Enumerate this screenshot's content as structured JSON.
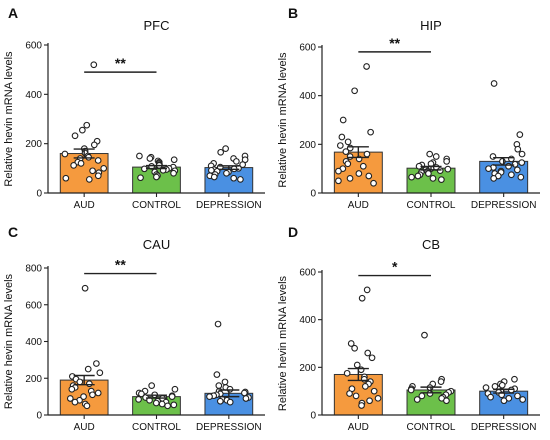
{
  "chart_data": [
    {
      "type": "bar",
      "panel": "A",
      "title": "PFC",
      "ylabel": "Relative hevin mRNA levels",
      "categories": [
        "AUD",
        "CONTROL",
        "DEPRESSION"
      ],
      "values": [
        160,
        105,
        103
      ],
      "sem": [
        18,
        6,
        7
      ],
      "ylim": [
        0,
        600
      ],
      "yticks": [
        0,
        200,
        400,
        600
      ],
      "colors": [
        "#f59a3e",
        "#6cc04a",
        "#4a90e2"
      ],
      "points": [
        [
          520,
          275,
          255,
          232,
          210,
          195,
          180,
          170,
          162,
          158,
          150,
          145,
          140,
          132,
          125,
          120,
          112,
          100,
          90,
          82,
          70,
          60,
          55
        ],
        [
          150,
          145,
          140,
          135,
          130,
          125,
          120,
          115,
          112,
          108,
          105,
          100,
          98,
          95,
          92,
          90,
          85,
          80,
          75,
          70,
          65,
          62
        ],
        [
          180,
          165,
          150,
          140,
          135,
          128,
          120,
          115,
          110,
          105,
          100,
          98,
          95,
          92,
          88,
          85,
          80,
          75,
          70,
          65,
          60,
          55
        ]
      ],
      "significance": {
        "label": "**",
        "from": "AUD",
        "to": "CONTROL",
        "y": 490
      }
    },
    {
      "type": "bar",
      "panel": "B",
      "title": "HIP",
      "ylabel": "Relative hevin mRNA levels",
      "categories": [
        "AUD",
        "CONTROL",
        "DEPRESSION"
      ],
      "values": [
        168,
        102,
        130
      ],
      "sem": [
        22,
        7,
        15
      ],
      "ylim": [
        0,
        600
      ],
      "yticks": [
        0,
        200,
        400,
        600
      ],
      "colors": [
        "#f59a3e",
        "#6cc04a",
        "#4a90e2"
      ],
      "points": [
        [
          520,
          420,
          300,
          250,
          230,
          210,
          195,
          185,
          170,
          160,
          150,
          140,
          130,
          120,
          110,
          100,
          90,
          80,
          70,
          60,
          50,
          40
        ],
        [
          160,
          150,
          140,
          130,
          125,
          120,
          115,
          110,
          105,
          100,
          98,
          95,
          92,
          90,
          85,
          80,
          75,
          70,
          65,
          60,
          55
        ],
        [
          450,
          240,
          200,
          180,
          160,
          150,
          140,
          130,
          125,
          118,
          110,
          105,
          100,
          95,
          90,
          85,
          80,
          75,
          70,
          65,
          60
        ]
      ],
      "significance": {
        "label": "**",
        "from": "AUD",
        "to": "CONTROL",
        "y": 580
      }
    },
    {
      "type": "bar",
      "panel": "C",
      "title": "CAU",
      "ylabel": "Relative hevin mRNA levels",
      "categories": [
        "AUD",
        "CONTROL",
        "DEPRESSION"
      ],
      "values": [
        190,
        100,
        118
      ],
      "sem": [
        25,
        8,
        18
      ],
      "ylim": [
        0,
        800
      ],
      "yticks": [
        0,
        200,
        400,
        600,
        800
      ],
      "colors": [
        "#f59a3e",
        "#6cc04a",
        "#4a90e2"
      ],
      "points": [
        [
          690,
          280,
          250,
          230,
          210,
          195,
          180,
          170,
          160,
          150,
          140,
          130,
          120,
          110,
          100,
          90,
          80,
          70,
          60,
          50
        ],
        [
          160,
          140,
          130,
          120,
          115,
          110,
          105,
          100,
          95,
          92,
          90,
          85,
          80,
          75,
          70,
          65,
          60,
          55,
          50
        ],
        [
          495,
          220,
          180,
          160,
          150,
          140,
          130,
          125,
          120,
          115,
          110,
          105,
          100,
          95,
          90,
          85,
          80,
          75,
          70
        ]
      ],
      "significance": {
        "label": "**",
        "from": "AUD",
        "to": "CONTROL",
        "y": 770
      }
    },
    {
      "type": "bar",
      "panel": "D",
      "title": "CB",
      "ylabel": "Relative hevin mRNA levels",
      "categories": [
        "AUD",
        "CONTROL",
        "DEPRESSION"
      ],
      "values": [
        170,
        105,
        100
      ],
      "sem": [
        25,
        12,
        8
      ],
      "ylim": [
        0,
        600
      ],
      "yticks": [
        0,
        200,
        400,
        600
      ],
      "colors": [
        "#f59a3e",
        "#6cc04a",
        "#4a90e2"
      ],
      "points": [
        [
          525,
          490,
          300,
          280,
          260,
          240,
          210,
          190,
          175,
          160,
          150,
          140,
          130,
          120,
          110,
          100,
          90,
          80,
          70,
          60,
          50,
          40
        ],
        [
          335,
          150,
          140,
          130,
          120,
          115,
          110,
          105,
          100,
          95,
          90,
          85,
          80,
          75,
          70,
          65,
          60
        ],
        [
          150,
          140,
          130,
          125,
          120,
          115,
          110,
          105,
          100,
          95,
          90,
          85,
          80,
          75,
          70,
          65,
          60
        ]
      ],
      "significance": {
        "label": "*",
        "from": "AUD",
        "to": "CONTROL",
        "y": 585
      }
    }
  ]
}
